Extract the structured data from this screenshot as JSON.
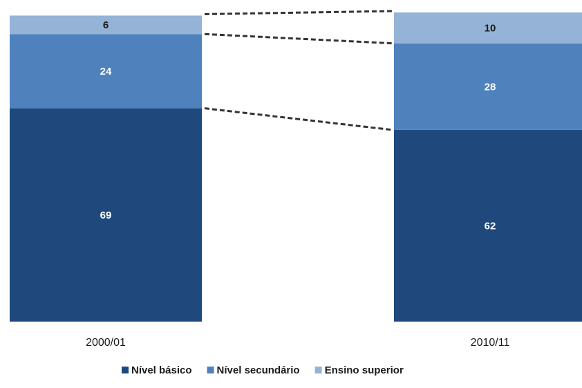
{
  "chart_data": {
    "type": "bar",
    "stacked": true,
    "categories": [
      "2000/01",
      "2010/11"
    ],
    "series": [
      {
        "name": "Nível básico",
        "values": [
          69,
          62
        ],
        "color": "#1f497d"
      },
      {
        "name": "Nível secundário",
        "values": [
          24,
          28
        ],
        "color": "#4f81bd"
      },
      {
        "name": "Ensino superior",
        "values": [
          6,
          10
        ],
        "color": "#95b3d7"
      }
    ],
    "ylim": [
      0,
      100
    ],
    "grid": false,
    "legend_position": "bottom",
    "connectors": "dashed"
  }
}
